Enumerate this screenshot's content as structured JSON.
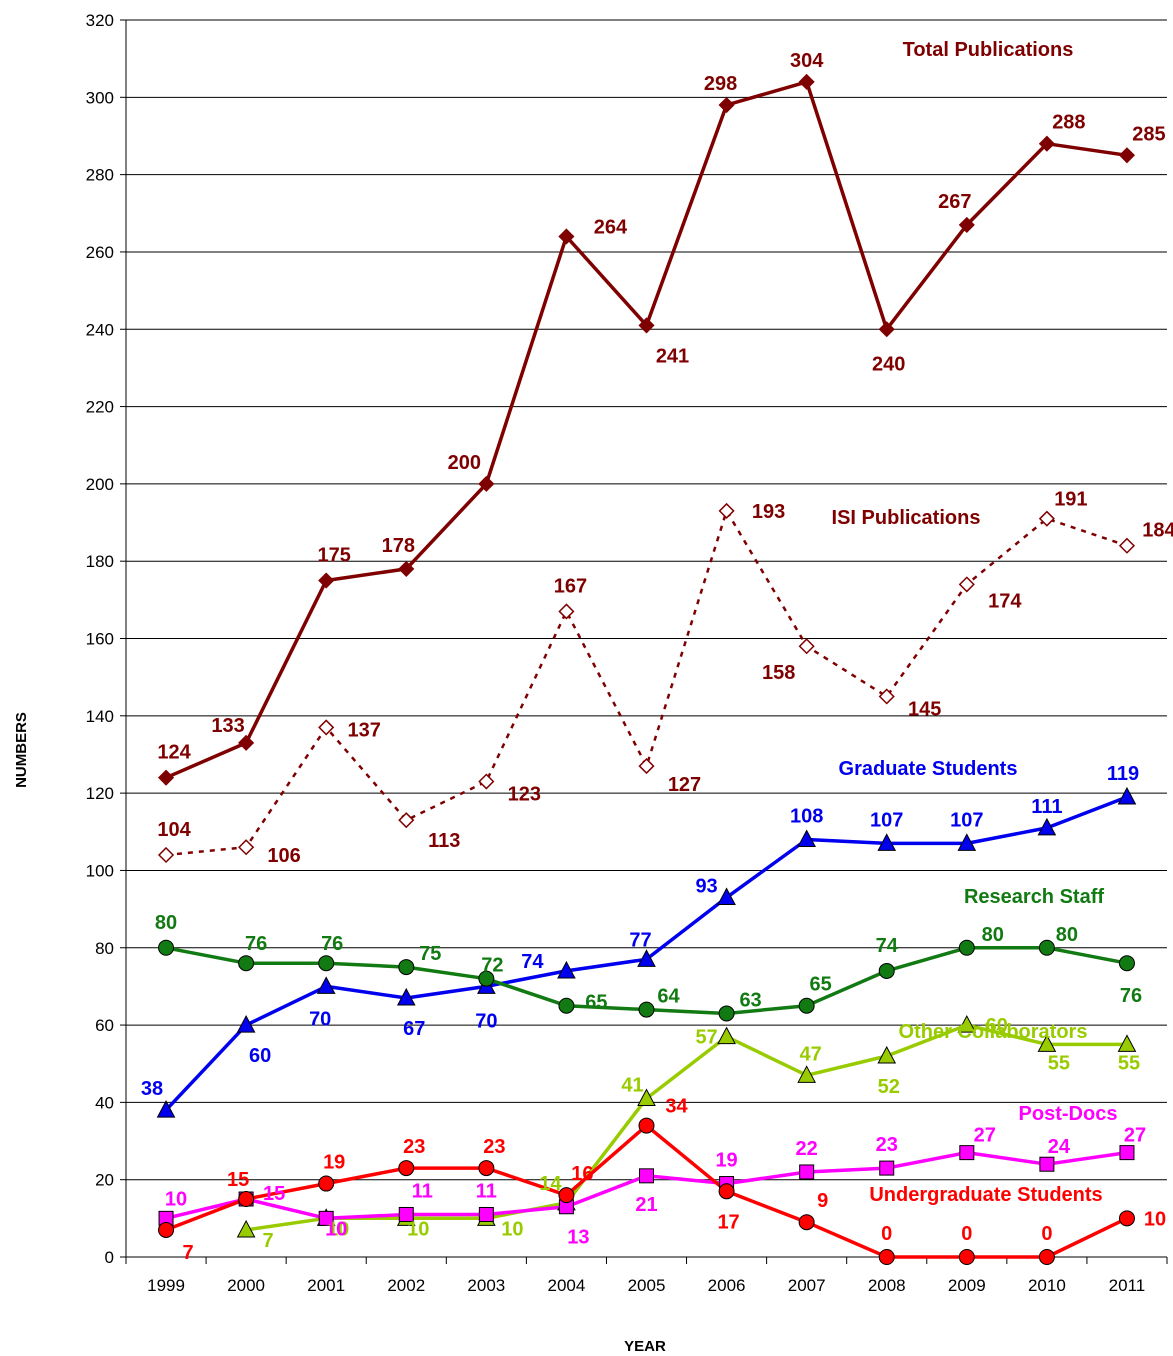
{
  "chart_data": {
    "type": "line",
    "xlabel": "YEAR",
    "ylabel": "NUMBERS",
    "ylim": [
      0,
      320
    ],
    "ytick_step": 20,
    "grid": "horizontal",
    "x": [
      "1999",
      "2000",
      "2001",
      "2002",
      "2003",
      "2004",
      "2005",
      "2006",
      "2007",
      "2008",
      "2009",
      "2010",
      "2011"
    ],
    "series": [
      {
        "name": "Total Publications",
        "color": "#7f0000",
        "marker": "diamond",
        "dashed": false,
        "values": [
          124,
          133,
          175,
          178,
          200,
          264,
          241,
          298,
          304,
          240,
          267,
          288,
          285
        ]
      },
      {
        "name": "ISI Publications",
        "color": "#7f0000",
        "marker": "diamond-open",
        "dashed": true,
        "values": [
          104,
          106,
          137,
          113,
          123,
          167,
          127,
          193,
          158,
          145,
          174,
          191,
          184
        ]
      },
      {
        "name": "Graduate Students",
        "color": "#0000ee",
        "marker": "triangle",
        "dashed": false,
        "values": [
          38,
          60,
          70,
          67,
          70,
          74,
          77,
          93,
          108,
          107,
          107,
          111,
          119
        ]
      },
      {
        "name": "Research Staff",
        "color": "#127a12",
        "marker": "circle",
        "dashed": false,
        "values": [
          80,
          76,
          76,
          75,
          72,
          65,
          64,
          63,
          65,
          74,
          80,
          80,
          76
        ]
      },
      {
        "name": "Other Collaborators",
        "color": "#99cc00",
        "marker": "triangle",
        "dashed": false,
        "values": [
          null,
          7,
          10,
          10,
          10,
          14,
          41,
          57,
          47,
          52,
          60,
          55,
          55
        ]
      },
      {
        "name": "Post-Docs",
        "color": "#ff00ff",
        "marker": "square",
        "dashed": false,
        "values": [
          10,
          15,
          10,
          11,
          11,
          13,
          21,
          19,
          22,
          23,
          27,
          24,
          27
        ]
      },
      {
        "name": "Undergraduate Students",
        "color": "#ff0000",
        "marker": "circle",
        "dashed": false,
        "values": [
          7,
          15,
          19,
          23,
          23,
          16,
          34,
          17,
          9,
          0,
          0,
          0,
          10
        ]
      }
    ]
  }
}
